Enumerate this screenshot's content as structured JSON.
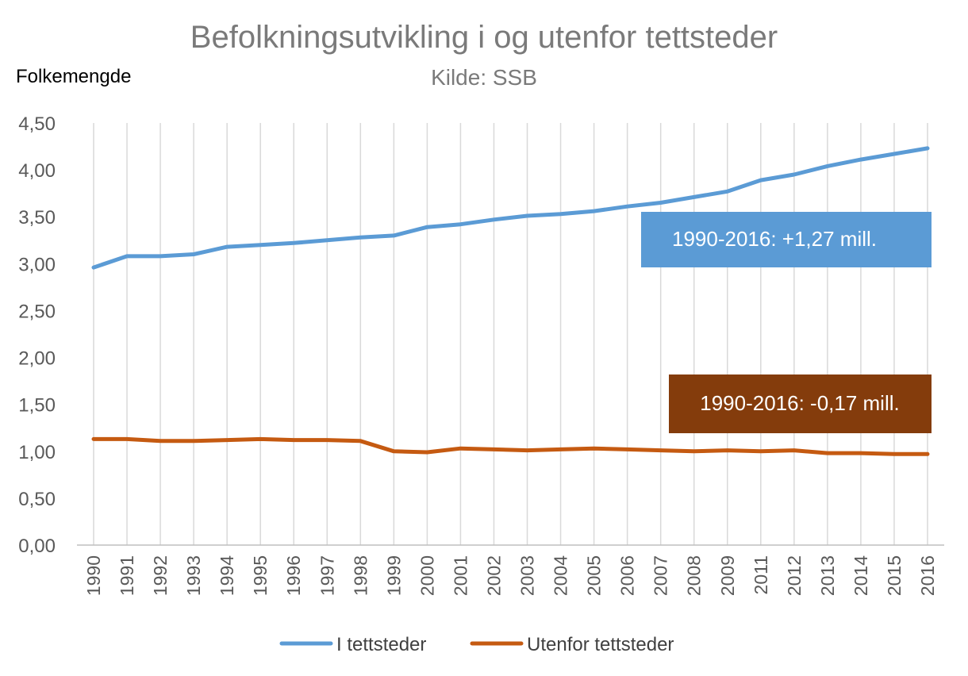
{
  "chart_data": {
    "type": "line",
    "title": "Befolkningsutvikling i og utenfor tettsteder",
    "subtitle": "Kilde: SSB",
    "ylabel": "Folkemengde",
    "xlabel": "",
    "ylim": [
      0,
      4.5
    ],
    "y_ticks": [
      "0,00",
      "0,50",
      "1,00",
      "1,50",
      "2,00",
      "2,50",
      "3,00",
      "3,50",
      "4,00",
      "4,50"
    ],
    "y_tick_values": [
      0,
      0.5,
      1.0,
      1.5,
      2.0,
      2.5,
      3.0,
      3.5,
      4.0,
      4.5
    ],
    "categories": [
      "1990",
      "1991",
      "1992",
      "1993",
      "1994",
      "1995",
      "1996",
      "1997",
      "1998",
      "1999",
      "2000",
      "2001",
      "2002",
      "2003",
      "2004",
      "2005",
      "2006",
      "2007",
      "2008",
      "2009",
      "2011",
      "2012",
      "2013",
      "2014",
      "2015",
      "2016"
    ],
    "grid": "vertical",
    "legend_position": "bottom",
    "series": [
      {
        "name": "I tettsteder",
        "color": "#5b9bd5",
        "values": [
          2.96,
          3.08,
          3.08,
          3.1,
          3.18,
          3.2,
          3.22,
          3.25,
          3.28,
          3.3,
          3.39,
          3.42,
          3.47,
          3.51,
          3.53,
          3.56,
          3.61,
          3.65,
          3.71,
          3.77,
          3.89,
          3.95,
          4.04,
          4.11,
          4.17,
          4.23
        ]
      },
      {
        "name": "Utenfor tettsteder",
        "color": "#c55a11",
        "values": [
          1.13,
          1.13,
          1.11,
          1.11,
          1.12,
          1.13,
          1.12,
          1.12,
          1.11,
          1.0,
          0.99,
          1.03,
          1.02,
          1.01,
          1.02,
          1.03,
          1.02,
          1.01,
          1.0,
          1.01,
          1.0,
          1.01,
          0.98,
          0.98,
          0.97,
          0.97
        ]
      }
    ],
    "annotations": [
      {
        "text": "1990-2016: +1,27 mill.",
        "color": "#5b9bd5"
      },
      {
        "text": "1990-2016: -0,17 mill.",
        "color": "#843c0c"
      }
    ]
  }
}
